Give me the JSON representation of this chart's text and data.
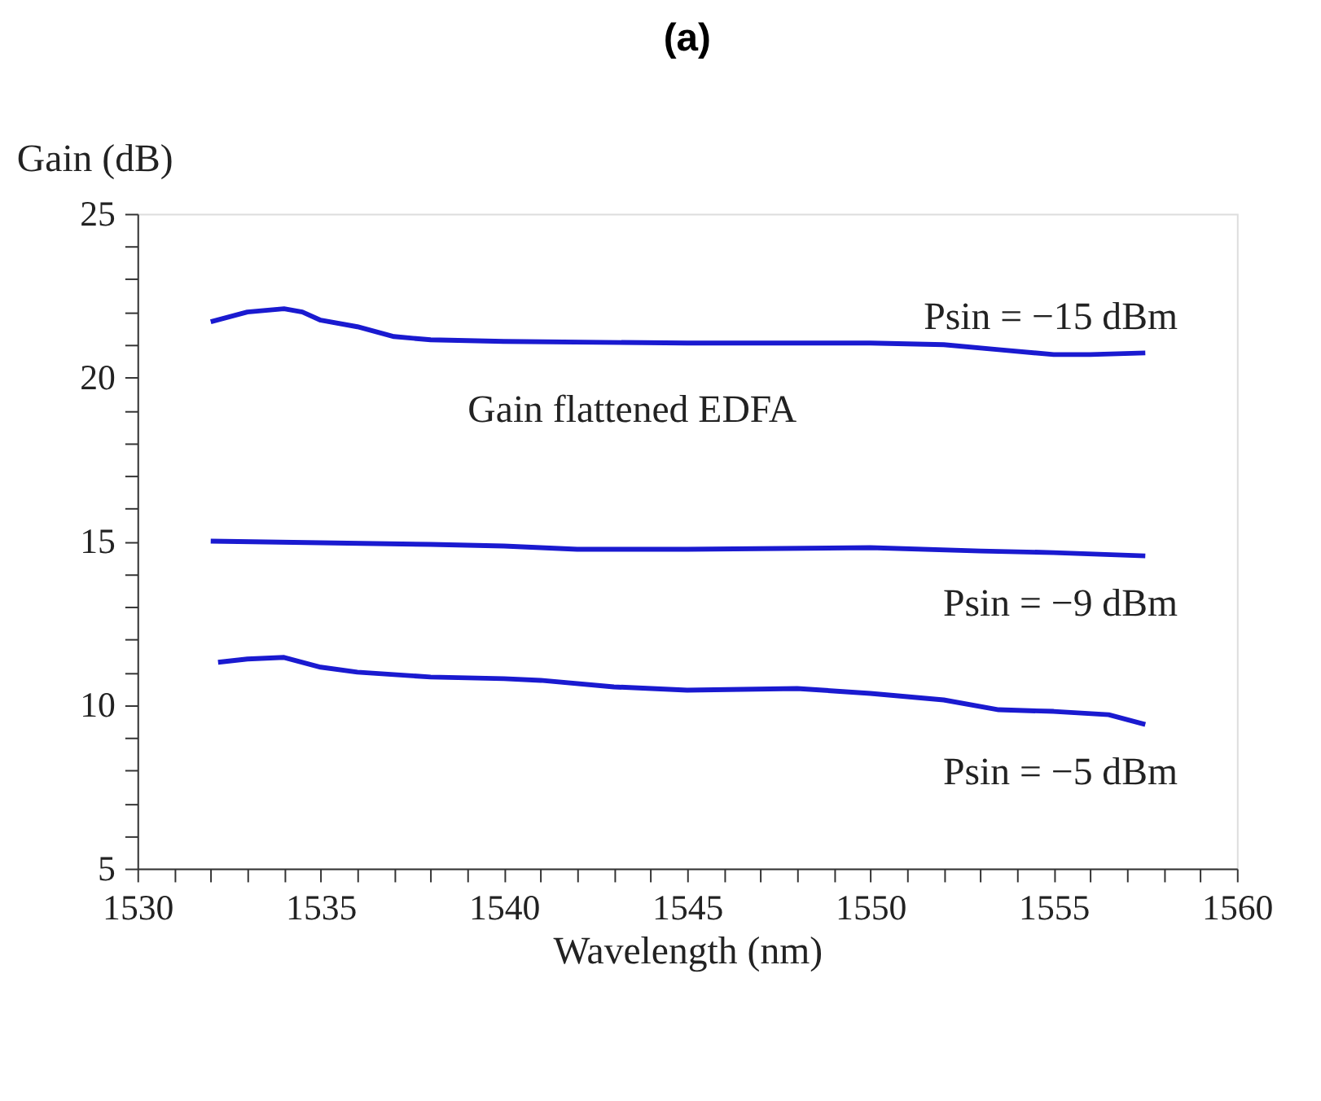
{
  "chart_data": {
    "type": "line",
    "title": "(a)",
    "xlabel": "Wavelength (nm)",
    "ylabel": "Gain (dB)",
    "annotations": [
      "Gain flattened EDFA"
    ],
    "xlim": [
      1530,
      1560
    ],
    "ylim": [
      5,
      25
    ],
    "xticks": [
      1530,
      {
        "value": 1531,
        "label": null
      },
      {
        "value": 1532,
        "label": null
      },
      {
        "value": 1533,
        "label": null
      },
      {
        "value": 1534,
        "label": null
      },
      1535,
      {
        "value": 1536,
        "label": null
      },
      {
        "value": 1537,
        "label": null
      },
      {
        "value": 1538,
        "label": null
      },
      {
        "value": 1539,
        "label": null
      },
      1540,
      {
        "value": 1541,
        "label": null
      },
      {
        "value": 1542,
        "label": null
      },
      {
        "value": 1543,
        "label": null
      },
      {
        "value": 1544,
        "label": null
      },
      1545,
      {
        "value": 1546,
        "label": null
      },
      {
        "value": 1547,
        "label": null
      },
      {
        "value": 1548,
        "label": null
      },
      {
        "value": 1549,
        "label": null
      },
      1550,
      {
        "value": 1551,
        "label": null
      },
      {
        "value": 1552,
        "label": null
      },
      {
        "value": 1553,
        "label": null
      },
      {
        "value": 1554,
        "label": null
      },
      1555,
      {
        "value": 1556,
        "label": null
      },
      {
        "value": 1557,
        "label": null
      },
      {
        "value": 1558,
        "label": null
      },
      {
        "value": 1559,
        "label": null
      },
      1560
    ],
    "yticks": [
      5,
      {
        "value": 6,
        "label": null
      },
      {
        "value": 7,
        "label": null
      },
      {
        "value": 8,
        "label": null
      },
      {
        "value": 9,
        "label": null
      },
      10,
      {
        "value": 11,
        "label": null
      },
      {
        "value": 12,
        "label": null
      },
      {
        "value": 13,
        "label": null
      },
      {
        "value": 14,
        "label": null
      },
      15,
      {
        "value": 16,
        "label": null
      },
      {
        "value": 17,
        "label": null
      },
      {
        "value": 18,
        "label": null
      },
      {
        "value": 19,
        "label": null
      },
      20,
      {
        "value": 21,
        "label": null
      },
      {
        "value": 22,
        "label": null
      },
      {
        "value": 23,
        "label": null
      },
      {
        "value": 24,
        "label": null
      },
      25
    ],
    "grid": false,
    "marker": "none",
    "line_style": "solid",
    "series": [
      {
        "name": "Psin = −15 dBm",
        "color": "#1a1ad0",
        "x": [
          1532,
          1533,
          1534,
          1534.5,
          1535,
          1536,
          1537,
          1538,
          1540,
          1545,
          1550,
          1552,
          1553.5,
          1555,
          1556,
          1557.5
        ],
        "values": [
          21.7,
          22.0,
          22.1,
          22.0,
          21.75,
          21.55,
          21.25,
          21.15,
          21.1,
          21.05,
          21.05,
          21.0,
          20.85,
          20.7,
          20.7,
          20.75
        ]
      },
      {
        "name": "Psin = −9 dBm",
        "color": "#1a1ad0",
        "x": [
          1532,
          1535,
          1538,
          1540,
          1542,
          1545,
          1550,
          1553,
          1555,
          1557.5
        ],
        "values": [
          15.0,
          14.95,
          14.9,
          14.85,
          14.75,
          14.75,
          14.8,
          14.7,
          14.65,
          14.55
        ]
      },
      {
        "name": "Psin = −5 dBm",
        "color": "#1a1ad0",
        "x": [
          1532.2,
          1533,
          1534,
          1535,
          1536,
          1538,
          1540,
          1541,
          1543,
          1545,
          1548,
          1550,
          1552,
          1553.5,
          1555,
          1556.5,
          1557.5
        ],
        "values": [
          11.3,
          11.4,
          11.45,
          11.15,
          11.0,
          10.85,
          10.8,
          10.75,
          10.55,
          10.45,
          10.5,
          10.35,
          10.15,
          9.85,
          9.8,
          9.7,
          9.4
        ]
      }
    ]
  }
}
